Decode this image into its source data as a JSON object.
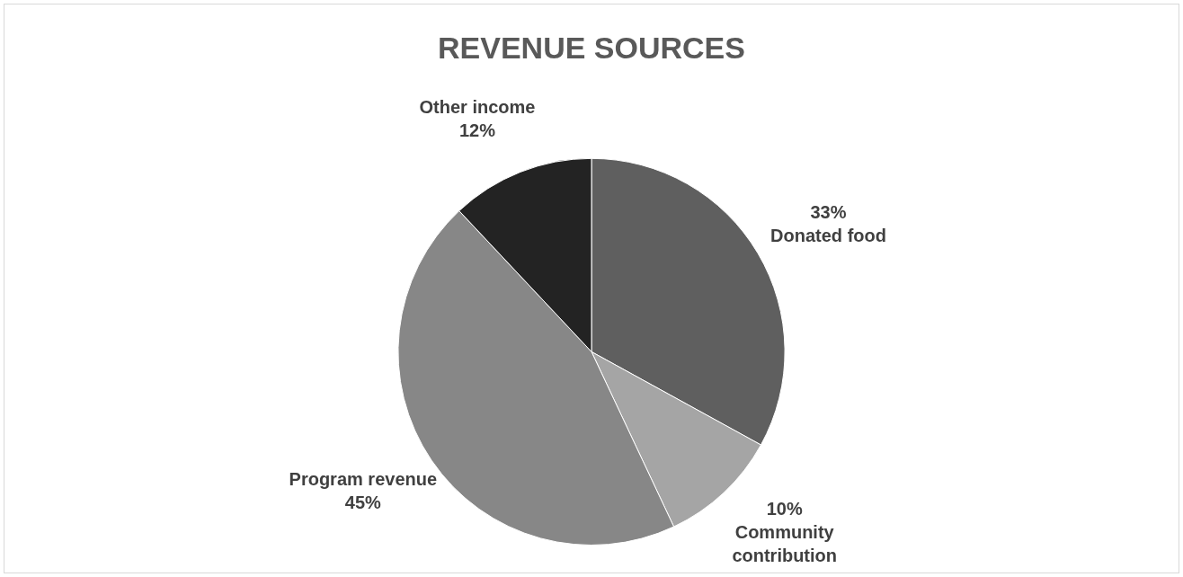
{
  "chart_data": {
    "type": "pie",
    "title": "REVENUE SOURCES",
    "categories": [
      "Donated food",
      "Community contribution",
      "Program revenue",
      "Other income"
    ],
    "values": [
      33,
      10,
      45,
      12
    ],
    "value_labels": [
      "33%",
      "10%",
      "45%",
      "12%"
    ],
    "colors": [
      "#5f5f5f",
      "#a5a5a5",
      "#878787",
      "#232323"
    ],
    "legend": false
  }
}
